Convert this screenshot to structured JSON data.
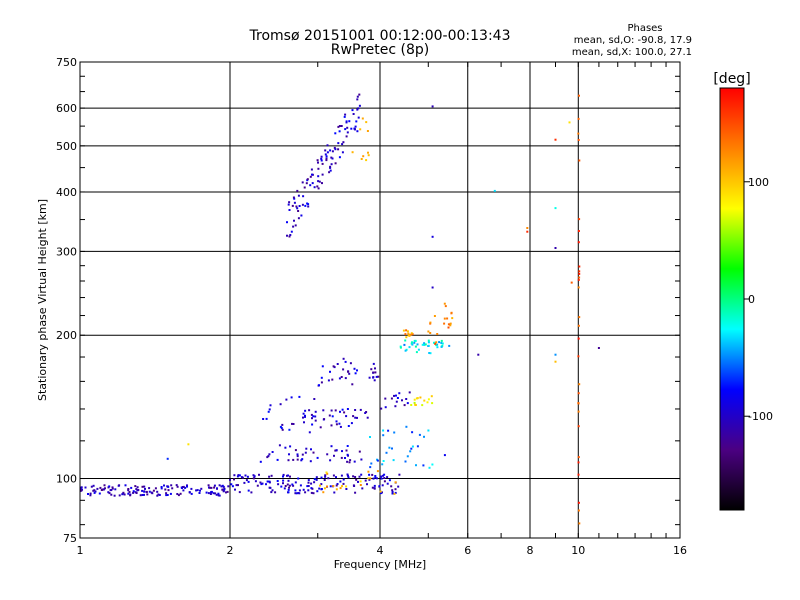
{
  "chart_data": {
    "type": "scatter",
    "title": "Tromsø 20151001 00:12:00-00:13:43",
    "subtitle": "RwPretec (8p)",
    "xlabel": "Frequency [MHz]",
    "ylabel": "Stationary phase Virtual Height [km]",
    "x_scale": "log",
    "y_scale": "log",
    "xlim": [
      1,
      16
    ],
    "ylim": [
      75,
      750
    ],
    "x_ticks": [
      1,
      2,
      4,
      6,
      8,
      10,
      16
    ],
    "x_tick_labels": [
      "1",
      "2",
      "4",
      "6",
      "8",
      "10",
      "16"
    ],
    "y_ticks": [
      75,
      100,
      200,
      300,
      400,
      500,
      600,
      750
    ],
    "y_tick_labels": [
      "75",
      "100",
      "200",
      "300",
      "400",
      "500",
      "600",
      "750"
    ],
    "grid": true,
    "legend": {
      "title": "Phases",
      "lines": [
        "mean, sd,O: -90.8, 17.9",
        "mean, sd,X: 100.0, 27.1"
      ],
      "placement": "top-right"
    },
    "colorbar": {
      "label": "[deg]",
      "range": [
        -180,
        180
      ],
      "ticks": [
        100,
        0,
        -100
      ],
      "tick_labels": [
        "100",
        "0",
        "-100"
      ],
      "colors": [
        "#000000",
        "#4b0082",
        "#0000ff",
        "#00ffff",
        "#00ff00",
        "#ffff00",
        "#ff8000",
        "#ff0000"
      ]
    },
    "clusters": [
      {
        "x": [
          2.6,
          3.7
        ],
        "y": [
          345,
          610
        ],
        "phase": -100,
        "n": 110,
        "trend": "rising"
      },
      {
        "x": [
          1.0,
          2.0
        ],
        "y": [
          92,
          97
        ],
        "phase": -105,
        "n": 150,
        "trend": "flat"
      },
      {
        "x": [
          2.0,
          4.4
        ],
        "y": [
          93,
          102
        ],
        "phase": -100,
        "n": 160,
        "trend": "flat"
      },
      {
        "x": [
          2.3,
          3.7
        ],
        "y": [
          108,
          118
        ],
        "phase": -100,
        "n": 45,
        "trend": "flat"
      },
      {
        "x": [
          2.8,
          3.8
        ],
        "y": [
          128,
          140
        ],
        "phase": -100,
        "n": 40,
        "trend": "flat"
      },
      {
        "x": [
          2.2,
          3.0
        ],
        "y": [
          125,
          150
        ],
        "phase": -95,
        "n": 20,
        "trend": "scatter"
      },
      {
        "x": [
          3.0,
          3.6
        ],
        "y": [
          155,
          180
        ],
        "phase": -100,
        "n": 25,
        "trend": "scatter"
      },
      {
        "x": [
          3.8,
          4.0
        ],
        "y": [
          160,
          175
        ],
        "phase": -105,
        "n": 12,
        "trend": "scatter"
      },
      {
        "x": [
          4.4,
          5.6
        ],
        "y": [
          183,
          195
        ],
        "phase": -30,
        "n": 40,
        "trend": "flat"
      },
      {
        "x": [
          4.4,
          4.7
        ],
        "y": [
          198,
          205
        ],
        "phase": 120,
        "n": 12,
        "trend": "flat"
      },
      {
        "x": [
          5.0,
          5.6
        ],
        "y": [
          203,
          225
        ],
        "phase": 130,
        "n": 20,
        "trend": "rising"
      },
      {
        "x": [
          4.0,
          4.6
        ],
        "y": [
          140,
          152
        ],
        "phase": -100,
        "n": 15,
        "trend": "flat"
      },
      {
        "x": [
          4.6,
          5.1
        ],
        "y": [
          142,
          150
        ],
        "phase": 80,
        "n": 14,
        "trend": "flat"
      },
      {
        "x": [
          3.8,
          5.1
        ],
        "y": [
          105,
          130
        ],
        "phase": -50,
        "n": 30,
        "trend": "scatter"
      },
      {
        "x": [
          3.0,
          4.5
        ],
        "y": [
          92,
          104
        ],
        "phase": 110,
        "n": 20,
        "trend": "scatter"
      },
      {
        "x": [
          3.5,
          3.8
        ],
        "y": [
          460,
          580
        ],
        "phase": 100,
        "n": 10,
        "trend": "scatter"
      },
      {
        "x": [
          10.0,
          10.05
        ],
        "y": [
          78,
          650
        ],
        "phase": 150,
        "n": 30,
        "trend": "vertical"
      }
    ],
    "points": [
      {
        "x": 5.1,
        "y": 605,
        "phase": -110
      },
      {
        "x": 5.1,
        "y": 322,
        "phase": -110
      },
      {
        "x": 5.1,
        "y": 252,
        "phase": -110
      },
      {
        "x": 6.8,
        "y": 402,
        "phase": -40
      },
      {
        "x": 7.9,
        "y": 336,
        "phase": 130
      },
      {
        "x": 7.9,
        "y": 330,
        "phase": 150
      },
      {
        "x": 9.0,
        "y": 370,
        "phase": -40
      },
      {
        "x": 9.0,
        "y": 305,
        "phase": -100
      },
      {
        "x": 9.0,
        "y": 515,
        "phase": 150
      },
      {
        "x": 9.0,
        "y": 182,
        "phase": -40
      },
      {
        "x": 9.0,
        "y": 176,
        "phase": 100
      },
      {
        "x": 9.6,
        "y": 560,
        "phase": 110
      },
      {
        "x": 9.7,
        "y": 258,
        "phase": 150
      },
      {
        "x": 6.3,
        "y": 182,
        "phase": -100
      },
      {
        "x": 11.0,
        "y": 188,
        "phase": -120
      },
      {
        "x": 1.65,
        "y": 118,
        "phase": 100
      },
      {
        "x": 1.5,
        "y": 110,
        "phase": -50
      },
      {
        "x": 5.4,
        "y": 112,
        "phase": -100
      }
    ]
  }
}
